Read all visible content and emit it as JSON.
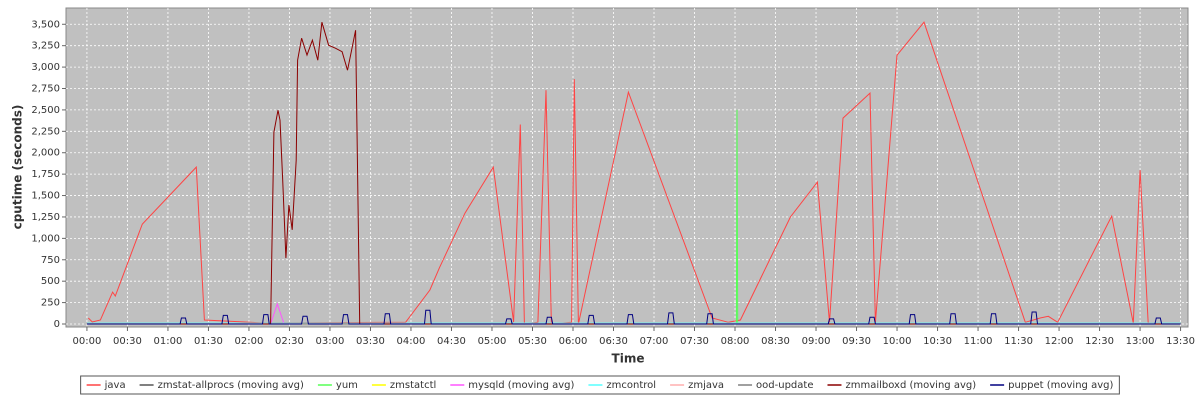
{
  "chart_data": {
    "type": "line",
    "x_label": "Time",
    "y_label": "cputime (seconds)",
    "xlim": [
      -15.5,
      815.5
    ],
    "ylim": [
      -35,
      3690
    ],
    "grid": true,
    "legend": "bottom",
    "xticks": [
      {
        "value": 0,
        "label": "00:00"
      },
      {
        "value": 30,
        "label": "00:30"
      },
      {
        "value": 60,
        "label": "01:00"
      },
      {
        "value": 90,
        "label": "01:30"
      },
      {
        "value": 120,
        "label": "02:00"
      },
      {
        "value": 150,
        "label": "02:30"
      },
      {
        "value": 180,
        "label": "03:00"
      },
      {
        "value": 210,
        "label": "03:30"
      },
      {
        "value": 240,
        "label": "04:00"
      },
      {
        "value": 270,
        "label": "04:30"
      },
      {
        "value": 300,
        "label": "05:00"
      },
      {
        "value": 330,
        "label": "05:30"
      },
      {
        "value": 360,
        "label": "06:00"
      },
      {
        "value": 390,
        "label": "06:30"
      },
      {
        "value": 420,
        "label": "07:00"
      },
      {
        "value": 450,
        "label": "07:30"
      },
      {
        "value": 480,
        "label": "08:00"
      },
      {
        "value": 510,
        "label": "08:30"
      },
      {
        "value": 540,
        "label": "09:00"
      },
      {
        "value": 570,
        "label": "09:30"
      },
      {
        "value": 600,
        "label": "10:00"
      },
      {
        "value": 630,
        "label": "10:30"
      },
      {
        "value": 660,
        "label": "11:00"
      },
      {
        "value": 690,
        "label": "11:30"
      },
      {
        "value": 720,
        "label": "12:00"
      },
      {
        "value": 750,
        "label": "12:30"
      },
      {
        "value": 780,
        "label": "13:00"
      },
      {
        "value": 810,
        "label": "13:30"
      }
    ],
    "yticks": [
      0,
      250,
      500,
      750,
      {
        "value": 1000,
        "label": "1,000"
      },
      {
        "value": 1250,
        "label": "1,250"
      },
      {
        "value": 1500,
        "label": "1,500"
      },
      {
        "value": 1750,
        "label": "1,750"
      },
      {
        "value": 2000,
        "label": "2,000"
      },
      {
        "value": 2250,
        "label": "2,250"
      },
      {
        "value": 2500,
        "label": "2,500"
      },
      {
        "value": 2750,
        "label": "2,750"
      },
      {
        "value": 3000,
        "label": "3,000"
      },
      {
        "value": 3250,
        "label": "3,250"
      },
      {
        "value": 3500,
        "label": "3,500"
      }
    ],
    "series": [
      {
        "name": "java",
        "color": "#ff4444",
        "x": [
          1,
          4,
          10,
          19,
          21,
          41,
          60,
          81,
          87,
          132,
          236,
          254,
          261,
          280,
          301,
          316,
          321,
          324,
          334,
          340,
          344,
          359,
          361,
          364,
          401,
          463,
          475,
          484,
          521,
          541,
          550,
          560,
          580,
          584,
          600,
          620,
          695,
          706,
          712,
          719,
          759,
          775,
          780,
          786,
          795
        ],
        "values": [
          70,
          23,
          47,
          373,
          327,
          1167,
          1482,
          1832,
          47,
          12,
          20,
          397,
          653,
          1295,
          1832,
          23,
          2330,
          0,
          20,
          2730,
          0,
          20,
          2860,
          0,
          2707,
          70,
          20,
          47,
          1249,
          1657,
          20,
          2404,
          2696,
          20,
          3139,
          3524,
          20,
          70,
          90,
          20,
          1260,
          10,
          1797,
          10,
          10
        ]
      },
      {
        "name": "zmstat-allprocs (moving avg)",
        "color": "#555555",
        "x": [
          0,
          810
        ],
        "values": [
          5,
          5
        ]
      },
      {
        "name": "yum",
        "color": "#55ff55",
        "x": [
          481,
          481.5,
          482
        ],
        "values": [
          0,
          2500,
          0
        ]
      },
      {
        "name": "zmstatctl",
        "color": "#ffff00",
        "x": [
          0,
          810
        ],
        "values": [
          3,
          3
        ]
      },
      {
        "name": "mysqld (moving avg)",
        "color": "#ff55ff",
        "x": [
          136,
          141,
          146
        ],
        "values": [
          0,
          233,
          0
        ]
      },
      {
        "name": "zmcontrol",
        "color": "#55ffff",
        "x": [
          0,
          810
        ],
        "values": [
          10,
          10
        ]
      },
      {
        "name": "zmjava",
        "color": "#ffafaf",
        "x": [
          0,
          810
        ],
        "values": [
          2,
          2
        ]
      },
      {
        "name": "ood-update",
        "color": "#808080",
        "x": [
          0,
          810
        ],
        "values": [
          1,
          1
        ]
      },
      {
        "name": "zmmailboxd (moving avg)",
        "color": "#8b0000",
        "x": [
          0,
          136,
          138.5,
          141.5,
          143,
          145,
          147.4,
          149.6,
          152,
          155,
          156,
          159,
          163,
          167,
          171,
          174,
          179,
          184,
          189,
          193,
          196,
          199,
          202,
          810
        ],
        "values": [
          0,
          0,
          2240,
          2497,
          2380,
          1680,
          770,
          1390,
          1100,
          1914,
          3080,
          3337,
          3140,
          3314,
          3080,
          3524,
          3256,
          3220,
          3180,
          2964,
          3197,
          3431,
          0,
          0
        ]
      },
      {
        "name": "puppet (moving avg)",
        "color": "#000080",
        "x": [
          0,
          69,
          70,
          73,
          74,
          100,
          101,
          104,
          105,
          130,
          131,
          134,
          135,
          159,
          160,
          163,
          164,
          189,
          190,
          193,
          194,
          220,
          221,
          224,
          225,
          250,
          251,
          254,
          255,
          310,
          311,
          314,
          315,
          340,
          341,
          344,
          345,
          371,
          372,
          375,
          376,
          400,
          401,
          404,
          405,
          430,
          431,
          434,
          435,
          459,
          460,
          463,
          464,
          549,
          550,
          553,
          554,
          579,
          580,
          583,
          584,
          609,
          610,
          613,
          614,
          639,
          640,
          643,
          644,
          669,
          670,
          673,
          674,
          699,
          700,
          703,
          704,
          791,
          792,
          795,
          796,
          810
        ],
        "values": [
          0,
          0,
          70,
          70,
          0,
          0,
          100,
          100,
          0,
          0,
          110,
          110,
          0,
          0,
          90,
          90,
          0,
          0,
          110,
          110,
          0,
          0,
          120,
          120,
          0,
          0,
          160,
          160,
          0,
          0,
          60,
          60,
          0,
          0,
          80,
          80,
          0,
          0,
          100,
          100,
          0,
          0,
          110,
          110,
          0,
          0,
          130,
          130,
          0,
          0,
          120,
          120,
          0,
          0,
          60,
          60,
          0,
          0,
          80,
          80,
          0,
          0,
          110,
          110,
          0,
          0,
          120,
          120,
          0,
          0,
          120,
          120,
          0,
          0,
          140,
          140,
          0,
          0,
          70,
          70,
          0,
          0
        ]
      }
    ]
  }
}
